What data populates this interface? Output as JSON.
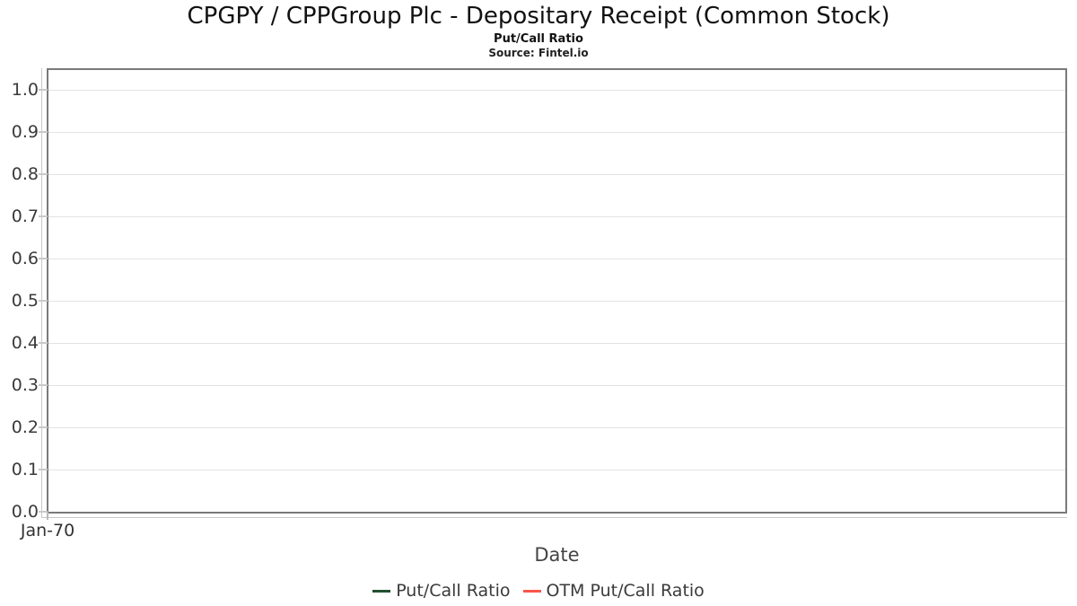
{
  "header": {
    "title": "CPGPY / CPPGroup Plc - Depositary Receipt (Common Stock)",
    "subtitle": "Put/Call Ratio",
    "source": "Source: Fintel.io"
  },
  "axes": {
    "x": {
      "label": "Date",
      "ticks": [
        "Jan-70"
      ]
    },
    "y": {
      "ticks": [
        {
          "label": "1.0",
          "value": 1.0
        },
        {
          "label": "0.9",
          "value": 0.9
        },
        {
          "label": "0.8",
          "value": 0.8
        },
        {
          "label": "0.7",
          "value": 0.7
        },
        {
          "label": "0.6",
          "value": 0.6
        },
        {
          "label": "0.5",
          "value": 0.5
        },
        {
          "label": "0.4",
          "value": 0.4
        },
        {
          "label": "0.3",
          "value": 0.3
        },
        {
          "label": "0.2",
          "value": 0.2
        },
        {
          "label": "0.1",
          "value": 0.1
        },
        {
          "label": "0.0",
          "value": 0.0
        }
      ]
    }
  },
  "legend": {
    "items": [
      {
        "label": "Put/Call Ratio",
        "color": "#234f30"
      },
      {
        "label": "OTM Put/Call Ratio",
        "color": "#fa554c"
      }
    ]
  },
  "chart_data": {
    "type": "line",
    "title": "CPGPY / CPPGroup Plc - Depositary Receipt (Common Stock)",
    "subtitle": "Put/Call Ratio",
    "source": "Source: Fintel.io",
    "xlabel": "Date",
    "ylabel": "",
    "x_ticks": [
      "Jan-70"
    ],
    "y_ticks": [
      0.0,
      0.1,
      0.2,
      0.3,
      0.4,
      0.5,
      0.6,
      0.7,
      0.8,
      0.9,
      1.0
    ],
    "ylim": [
      0,
      1.05
    ],
    "grid": "horizontal",
    "legend_position": "bottom",
    "series": [
      {
        "name": "Put/Call Ratio",
        "color": "#234f30",
        "x": [],
        "values": []
      },
      {
        "name": "OTM Put/Call Ratio",
        "color": "#fa554c",
        "x": [],
        "values": []
      }
    ]
  }
}
